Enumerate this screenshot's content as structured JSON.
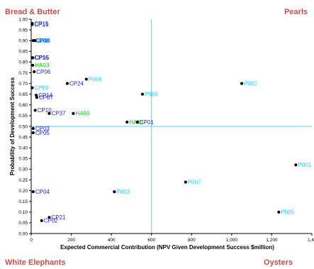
{
  "quadrants": {
    "top_left": "Bread & Butter",
    "top_right": "Pearls",
    "bottom_left": "White Elephants",
    "bottom_right": "Oysters"
  },
  "chart_data": {
    "type": "scatter",
    "xlabel": "Expected Commercial Contribution (NPV Given Development Success $million)",
    "ylabel": "Probability of Development Success",
    "xlim": [
      0,
      1400
    ],
    "ylim": [
      0,
      1.0
    ],
    "x_ticks": [
      "0",
      "200",
      "400",
      "600",
      "800",
      "1,000",
      "1,200",
      "1,40"
    ],
    "y_ticks": [
      "0.00",
      "0.05",
      "0.10",
      "0.15",
      "0.20",
      "0.25",
      "0.30",
      "0.35",
      "0.40",
      "0.45",
      "0.50",
      "0.55",
      "0.60",
      "0.65",
      "0.70",
      "0.75",
      "0.80",
      "0.85",
      "0.90",
      "0.95",
      "1.00"
    ],
    "reference_lines": {
      "x": 600,
      "y": 0.5
    },
    "colors": {
      "CP": "#1f1fd0",
      "P": "#00d8ff",
      "HA": "#00c800",
      "reference": "#55c8ee"
    },
    "points": [
      {
        "label": "CP15",
        "x": 5,
        "y": 0.98,
        "group": "CP"
      },
      {
        "label": "CP19",
        "x": 5,
        "y": 0.975,
        "group": "CP"
      },
      {
        "label": "CP08",
        "x": 10,
        "y": 0.9,
        "group": "CP"
      },
      {
        "label": "CP13",
        "x": 13,
        "y": 0.9,
        "group": "CP"
      },
      {
        "label": "P008",
        "x": 18,
        "y": 0.9,
        "group": "P"
      },
      {
        "label": "CP16",
        "x": 5,
        "y": 0.82,
        "group": "CP"
      },
      {
        "label": "CP15",
        "x": 8,
        "y": 0.82,
        "group": "CP"
      },
      {
        "label": "HA03",
        "x": 8,
        "y": 0.785,
        "group": "HA"
      },
      {
        "label": "CP06",
        "x": 15,
        "y": 0.755,
        "group": "CP"
      },
      {
        "label": "P004",
        "x": 275,
        "y": 0.72,
        "group": "P"
      },
      {
        "label": "CP24",
        "x": 180,
        "y": 0.7,
        "group": "CP"
      },
      {
        "label": "P002",
        "x": 1050,
        "y": 0.7,
        "group": "P"
      },
      {
        "label": "CP09",
        "x": 5,
        "y": 0.68,
        "group": "P"
      },
      {
        "label": "P006",
        "x": 555,
        "y": 0.65,
        "group": "P"
      },
      {
        "label": "CP14",
        "x": 25,
        "y": 0.645,
        "group": "CP"
      },
      {
        "label": "CP07",
        "x": 28,
        "y": 0.635,
        "group": "CP"
      },
      {
        "label": "CP10",
        "x": 20,
        "y": 0.575,
        "group": "CP"
      },
      {
        "label": "CP37",
        "x": 90,
        "y": 0.56,
        "group": "CP"
      },
      {
        "label": "HA50",
        "x": 210,
        "y": 0.56,
        "group": "HA"
      },
      {
        "label": "HA01",
        "x": 478,
        "y": 0.52,
        "group": "HA"
      },
      {
        "label": "CP01",
        "x": 530,
        "y": 0.52,
        "group": "CP"
      },
      {
        "label": "CP03",
        "x": 10,
        "y": 0.49,
        "group": "CP"
      },
      {
        "label": "CP05",
        "x": 10,
        "y": 0.47,
        "group": "CP"
      },
      {
        "label": "P001",
        "x": 1320,
        "y": 0.32,
        "group": "P"
      },
      {
        "label": "P007",
        "x": 770,
        "y": 0.24,
        "group": "P"
      },
      {
        "label": "CP04",
        "x": 10,
        "y": 0.195,
        "group": "CP"
      },
      {
        "label": "P003",
        "x": 415,
        "y": 0.195,
        "group": "P"
      },
      {
        "label": "P005",
        "x": 1235,
        "y": 0.1,
        "group": "P"
      },
      {
        "label": "CP21",
        "x": 90,
        "y": 0.075,
        "group": "CP"
      },
      {
        "label": "CP02",
        "x": 52,
        "y": 0.06,
        "group": "CP"
      }
    ]
  }
}
